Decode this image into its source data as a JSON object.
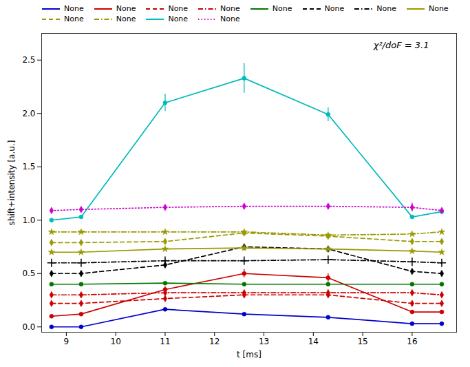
{
  "chart_data": {
    "type": "line",
    "xlabel": "t [ms]",
    "ylabel": "shift+intensity [a.u.]",
    "annotations": [
      "χ²/doF = 3.1"
    ],
    "xlim": [
      8.5,
      16.9
    ],
    "ylim": [
      -0.05,
      2.75
    ],
    "xticks": [
      9,
      10,
      11,
      12,
      13,
      14,
      15,
      16
    ],
    "yticks": [
      {
        "value": 0.0,
        "label": "0.0"
      },
      0.5,
      {
        "value": 1.0,
        "label": "1.0"
      },
      1.5,
      {
        "value": 2.0,
        "label": "2.0"
      },
      2.5
    ],
    "legend": "upper left",
    "x": [
      8.7,
      9.3,
      11.0,
      12.6,
      14.3,
      16.0,
      16.6
    ],
    "series": [
      {
        "name": "None",
        "color": "#0000cc",
        "line_style": "solid",
        "marker": "circle",
        "values": [
          0.0,
          0.0,
          0.165,
          0.12,
          0.09,
          0.03,
          0.03
        ],
        "yerr": [
          null,
          null,
          null,
          null,
          null,
          null,
          null
        ]
      },
      {
        "name": "None",
        "color": "#cc0000",
        "line_style": "solid",
        "marker": "circle",
        "values": [
          0.1,
          0.12,
          0.35,
          0.5,
          0.46,
          0.14,
          0.14
        ],
        "yerr": [
          null,
          null,
          0.028,
          0.038,
          0.038,
          null,
          null
        ]
      },
      {
        "name": "None",
        "color": "#cc0000",
        "line_style": "dashed",
        "marker": "diamond",
        "values": [
          0.22,
          0.22,
          0.265,
          0.3,
          0.3,
          0.22,
          0.22
        ],
        "yerr": [
          null,
          null,
          null,
          null,
          null,
          null,
          null
        ]
      },
      {
        "name": "None",
        "color": "#cc0000",
        "line_style": "dashdot",
        "marker": "diamond",
        "values": [
          0.3,
          0.3,
          0.32,
          0.32,
          0.32,
          0.32,
          0.3
        ],
        "yerr": [
          null,
          null,
          null,
          null,
          null,
          null,
          null
        ]
      },
      {
        "name": "None",
        "color": "#007700",
        "line_style": "solid",
        "marker": "circle",
        "values": [
          0.4,
          0.4,
          0.41,
          0.4,
          0.4,
          0.4,
          0.4
        ],
        "yerr": [
          null,
          null,
          null,
          null,
          null,
          null,
          null
        ]
      },
      {
        "name": "None",
        "color": "#000000",
        "line_style": "dashed",
        "marker": "diamond",
        "values": [
          0.5,
          0.5,
          0.58,
          0.75,
          0.73,
          0.52,
          0.5
        ],
        "yerr": [
          null,
          null,
          null,
          null,
          null,
          null,
          null
        ]
      },
      {
        "name": "None",
        "color": "#000000",
        "line_style": "dashdot",
        "marker": "plus",
        "values": [
          0.6,
          0.6,
          0.62,
          0.62,
          0.63,
          0.61,
          0.6
        ],
        "yerr": [
          null,
          null,
          null,
          null,
          null,
          null,
          null
        ]
      },
      {
        "name": "None",
        "color": "#999900",
        "line_style": "solid",
        "marker": "star",
        "values": [
          0.7,
          0.7,
          0.73,
          0.74,
          0.73,
          0.71,
          0.7
        ],
        "yerr": [
          null,
          null,
          null,
          null,
          null,
          null,
          null
        ]
      },
      {
        "name": "None",
        "color": "#999900",
        "line_style": "dashed",
        "marker": "diamond",
        "values": [
          0.79,
          0.79,
          0.8,
          0.88,
          0.85,
          0.8,
          0.8
        ],
        "yerr": [
          null,
          null,
          null,
          null,
          null,
          null,
          null
        ]
      },
      {
        "name": "None",
        "color": "#999900",
        "line_style": "dashdot",
        "marker": "star",
        "values": [
          0.89,
          0.89,
          0.89,
          0.89,
          0.86,
          0.87,
          0.89
        ],
        "yerr": [
          null,
          null,
          null,
          null,
          null,
          null,
          null
        ]
      },
      {
        "name": "None",
        "color": "#00bbbb",
        "line_style": "solid",
        "marker": "circle",
        "values": [
          1.0,
          1.03,
          2.1,
          2.33,
          1.99,
          1.03,
          1.08
        ],
        "yerr": [
          null,
          null,
          0.08,
          0.14,
          0.065,
          null,
          null
        ]
      },
      {
        "name": "None",
        "color": "#cc00cc",
        "line_style": "dotted",
        "marker": "diamond",
        "values": [
          1.09,
          1.1,
          1.12,
          1.13,
          1.13,
          1.12,
          1.09
        ],
        "yerr": [
          null,
          null,
          null,
          null,
          null,
          0.04,
          null
        ]
      }
    ]
  }
}
